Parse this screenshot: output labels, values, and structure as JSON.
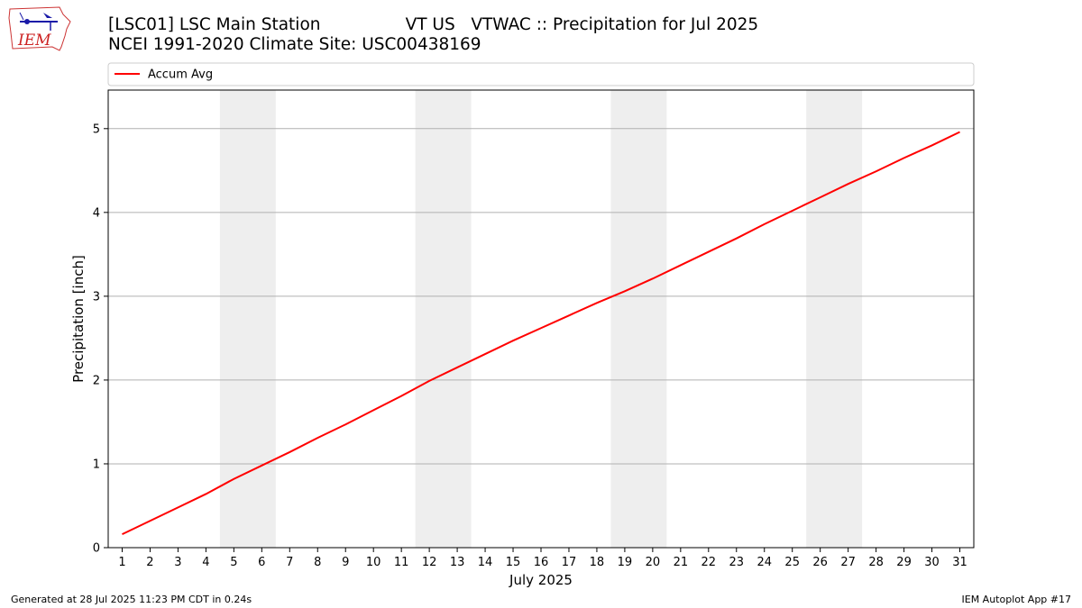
{
  "header": {
    "title_line1": "[LSC01] LSC Main Station                VT US   VTWAC :: Precipitation for Jul 2025",
    "title_line2": "NCEI 1991-2020 Climate Site: USC00438169",
    "logo_text": "IEM"
  },
  "footer": {
    "generated": "Generated at 28 Jul 2025 11:23 PM CDT in 0.24s",
    "app": "IEM Autoplot App #17"
  },
  "colors": {
    "series": "#ff0000",
    "weekend_band": "#eeeeee",
    "grid": "#b0b0b0"
  },
  "chart_data": {
    "type": "line",
    "title": "[LSC01] LSC Main Station                VT US   VTWAC :: Precipitation for Jul 2025",
    "subtitle": "NCEI 1991-2020 Climate Site: USC00438169",
    "xlabel": "July 2025",
    "ylabel": "Precipitation [inch]",
    "xlim": [
      0.5,
      31.5
    ],
    "ylim": [
      0,
      5.46
    ],
    "x_ticks": [
      1,
      2,
      3,
      4,
      5,
      6,
      7,
      8,
      9,
      10,
      11,
      12,
      13,
      14,
      15,
      16,
      17,
      18,
      19,
      20,
      21,
      22,
      23,
      24,
      25,
      26,
      27,
      28,
      29,
      30,
      31
    ],
    "y_ticks": [
      0,
      1,
      2,
      3,
      4,
      5
    ],
    "grid": "y-major",
    "legend": "top-left, above plot",
    "shaded_bands": [
      [
        4.5,
        6.5
      ],
      [
        11.5,
        13.5
      ],
      [
        18.5,
        20.5
      ],
      [
        25.5,
        27.5
      ]
    ],
    "series": [
      {
        "name": "Accum Avg",
        "x": [
          1,
          2,
          3,
          4,
          5,
          6,
          7,
          8,
          9,
          10,
          11,
          12,
          13,
          14,
          15,
          16,
          17,
          18,
          19,
          20,
          21,
          22,
          23,
          24,
          25,
          26,
          27,
          28,
          29,
          30,
          31
        ],
        "values": [
          0.16,
          0.32,
          0.48,
          0.64,
          0.82,
          0.98,
          1.14,
          1.31,
          1.47,
          1.64,
          1.81,
          1.99,
          2.15,
          2.31,
          2.47,
          2.62,
          2.77,
          2.92,
          3.06,
          3.21,
          3.37,
          3.53,
          3.69,
          3.86,
          4.02,
          4.18,
          4.34,
          4.49,
          4.65,
          4.8,
          4.96
        ]
      }
    ]
  }
}
